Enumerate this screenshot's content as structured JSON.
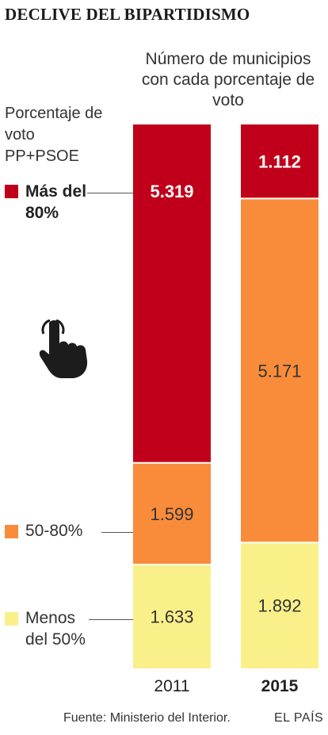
{
  "title": "DECLIVE DEL BIPARTIDISMO",
  "subtitle": "Número de municipios con cada porcentaje de voto",
  "legend_title": "Porcentaje de voto PP+PSOE",
  "legend": [
    {
      "label": "Más del 80%",
      "color": "#c0001a"
    },
    {
      "label": "50-80%",
      "color": "#f98c3a"
    },
    {
      "label": "Menos del 50%",
      "color": "#faf08a"
    }
  ],
  "hand_icon": "pointing-hand-icon",
  "source": "Fuente: Ministerio del Interior.",
  "brand": "EL PAÍS",
  "chart_data": {
    "type": "bar",
    "stacked": true,
    "categories": [
      "2011",
      "2015"
    ],
    "series": [
      {
        "name": "Menos del 50%",
        "color": "#faf08a",
        "values": [
          1633,
          1892
        ],
        "labels": [
          "1.633",
          "1.892"
        ]
      },
      {
        "name": "50-80%",
        "color": "#f98c3a",
        "values": [
          1599,
          5171
        ],
        "labels": [
          "1.599",
          "5.171"
        ]
      },
      {
        "name": "Más del 80%",
        "color": "#c0001a",
        "values": [
          5319,
          1112
        ],
        "labels": [
          "5.319",
          "1.112"
        ]
      }
    ]
  }
}
